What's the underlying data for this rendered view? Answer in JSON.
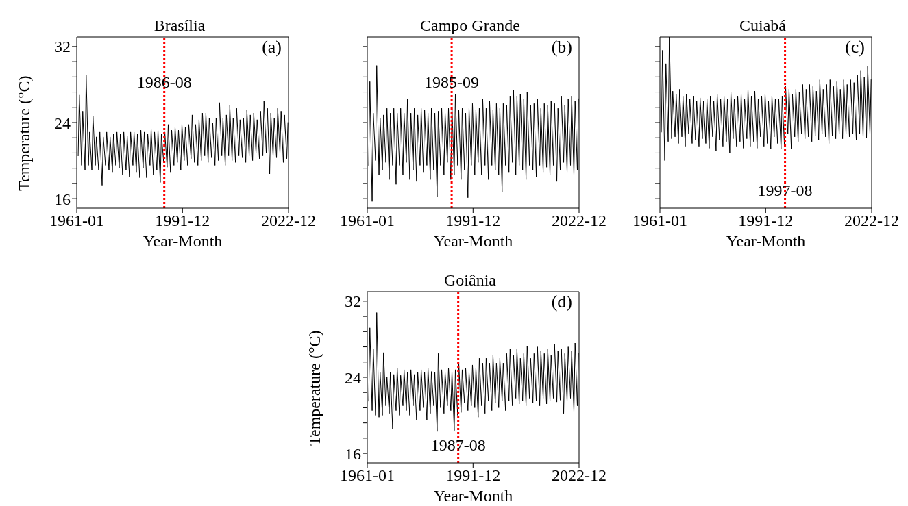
{
  "chart_data": [
    {
      "type": "line",
      "title": "Brasília",
      "xlabel": "Year-Month",
      "ylabel": "Temperature (°C)",
      "annotations": [
        "(a)"
      ],
      "x": [
        "1961-06",
        "1961-10",
        "1962-06",
        "1962-10",
        "1963-06",
        "1963-10",
        "1964-06",
        "1964-10",
        "1965-06",
        "1965-10",
        "1966-06",
        "1966-10",
        "1967-06",
        "1967-10",
        "1968-06",
        "1968-10",
        "1969-06",
        "1969-10",
        "1970-06",
        "1970-10",
        "1971-06",
        "1971-10",
        "1972-06",
        "1972-10",
        "1973-06",
        "1973-10",
        "1974-06",
        "1974-10",
        "1975-06",
        "1975-10",
        "1976-06",
        "1976-10",
        "1977-06",
        "1977-10",
        "1978-06",
        "1978-10",
        "1979-06",
        "1979-10",
        "1980-06",
        "1980-10",
        "1981-06",
        "1981-10",
        "1982-06",
        "1982-10",
        "1983-06",
        "1983-10",
        "1984-06",
        "1984-10",
        "1985-06",
        "1985-10",
        "1986-06",
        "1986-10",
        "1987-06",
        "1987-10",
        "1988-06",
        "1988-10",
        "1989-06",
        "1989-10",
        "1990-06",
        "1990-10",
        "1991-06",
        "1991-10",
        "1992-06",
        "1992-10",
        "1993-06",
        "1993-10",
        "1994-06",
        "1994-10",
        "1995-06",
        "1995-10",
        "1996-06",
        "1996-10",
        "1997-06",
        "1997-10",
        "1998-06",
        "1998-10",
        "1999-06",
        "1999-10",
        "2000-06",
        "2000-10",
        "2001-06",
        "2001-10",
        "2002-06",
        "2002-10",
        "2003-06",
        "2003-10",
        "2004-06",
        "2004-10",
        "2005-06",
        "2005-10",
        "2006-06",
        "2006-10",
        "2007-06",
        "2007-10",
        "2008-06",
        "2008-10",
        "2009-06",
        "2009-10",
        "2010-06",
        "2010-10",
        "2011-06",
        "2011-10",
        "2012-06",
        "2012-10",
        "2013-06",
        "2013-10",
        "2014-06",
        "2014-10",
        "2015-06",
        "2015-10",
        "2016-06",
        "2016-10",
        "2017-06",
        "2017-10",
        "2018-06",
        "2018-10",
        "2019-06",
        "2019-10",
        "2020-06",
        "2020-10",
        "2021-06",
        "2021-10",
        "2022-06",
        "2022-10"
      ],
      "series": [
        {
          "color": "#000000",
          "values": [
            20.5,
            26.9,
            19.5,
            25.2,
            19.0,
            29.0,
            19.5,
            23.0,
            19.0,
            24.7,
            19.5,
            22.5,
            19.0,
            23.0,
            17.4,
            22.5,
            19.5,
            23.0,
            19.0,
            22.5,
            18.8,
            22.8,
            19.5,
            23.0,
            19.2,
            22.8,
            18.5,
            23.0,
            19.0,
            22.6,
            18.3,
            23.0,
            19.5,
            23.0,
            18.8,
            22.8,
            18.2,
            23.2,
            19.2,
            23.0,
            18.2,
            22.8,
            19.5,
            23.3,
            18.5,
            23.0,
            19.0,
            23.2,
            17.7,
            22.8,
            19.8,
            23.0,
            19.3,
            23.8,
            18.8,
            23.2,
            19.5,
            23.5,
            19.8,
            23.2,
            19.0,
            23.8,
            20.0,
            23.5,
            19.5,
            23.8,
            20.2,
            24.8,
            19.8,
            23.8,
            19.5,
            24.3,
            20.0,
            25.0,
            20.5,
            25.0,
            19.8,
            24.5,
            20.3,
            24.0,
            19.5,
            24.5,
            20.0,
            26.1,
            20.5,
            24.5,
            19.5,
            24.8,
            20.5,
            25.8,
            20.0,
            24.5,
            19.8,
            25.5,
            20.5,
            24.3,
            20.3,
            24.5,
            19.8,
            25.3,
            20.5,
            24.8,
            20.0,
            25.0,
            20.8,
            24.3,
            20.2,
            25.2,
            20.5,
            26.3,
            20.8,
            25.5,
            18.6,
            25.0,
            20.5,
            24.5,
            20.3,
            25.5,
            20.8,
            25.2,
            19.8,
            24.8,
            20.2,
            24.0
          ]
        }
      ],
      "xlim": [
        "1961-01",
        "2022-12"
      ],
      "xticks": [
        "1961-01",
        "1991-12",
        "2022-12"
      ],
      "ylim": [
        15,
        33
      ],
      "yticks": [
        16,
        {
          "value": 17.6,
          "label": null
        },
        {
          "value": 19.2,
          "label": null
        },
        {
          "value": 20.8,
          "label": null
        },
        {
          "value": 22.4,
          "label": null
        },
        24,
        {
          "value": 25.6,
          "label": null
        },
        {
          "value": 27.2,
          "label": null
        },
        {
          "value": 28.8,
          "label": null
        },
        {
          "value": 30.4,
          "label": null
        },
        32
      ],
      "ref_lines": [
        {
          "axis": "x",
          "value": "1986-08",
          "label": "1986-08",
          "color": "#ff0000",
          "line_style": "dotted"
        }
      ],
      "legend": false,
      "grid": false,
      "marker": "none",
      "line_style": "solid"
    },
    {
      "type": "line",
      "title": "Campo Grande",
      "xlabel": "Year-Month",
      "annotations": [
        "(b)"
      ],
      "x": [
        "1961-06",
        "1961-10",
        "1962-06",
        "1962-10",
        "1963-06",
        "1963-10",
        "1964-06",
        "1964-10",
        "1965-06",
        "1965-10",
        "1966-06",
        "1966-10",
        "1967-06",
        "1967-10",
        "1968-06",
        "1968-10",
        "1969-06",
        "1969-10",
        "1970-06",
        "1970-10",
        "1971-06",
        "1971-10",
        "1972-06",
        "1972-10",
        "1973-06",
        "1973-10",
        "1974-06",
        "1974-10",
        "1975-06",
        "1975-10",
        "1976-06",
        "1976-10",
        "1977-06",
        "1977-10",
        "1978-06",
        "1978-10",
        "1979-06",
        "1979-10",
        "1980-06",
        "1980-10",
        "1981-06",
        "1981-10",
        "1982-06",
        "1982-10",
        "1983-06",
        "1983-10",
        "1984-06",
        "1984-10",
        "1985-06",
        "1985-10",
        "1986-06",
        "1986-10",
        "1987-06",
        "1987-10",
        "1988-06",
        "1988-10",
        "1989-06",
        "1989-10",
        "1990-06",
        "1990-10",
        "1991-06",
        "1991-10",
        "1992-06",
        "1992-10",
        "1993-06",
        "1993-10",
        "1994-06",
        "1994-10",
        "1995-06",
        "1995-10",
        "1996-06",
        "1996-10",
        "1997-06",
        "1997-10",
        "1998-06",
        "1998-10",
        "1999-06",
        "1999-10",
        "2000-06",
        "2000-10",
        "2001-06",
        "2001-10",
        "2002-06",
        "2002-10",
        "2003-06",
        "2003-10",
        "2004-06",
        "2004-10",
        "2005-06",
        "2005-10",
        "2006-06",
        "2006-10",
        "2007-06",
        "2007-10",
        "2008-06",
        "2008-10",
        "2009-06",
        "2009-10",
        "2010-06",
        "2010-10",
        "2011-06",
        "2011-10",
        "2012-06",
        "2012-10",
        "2013-06",
        "2013-10",
        "2014-06",
        "2014-10",
        "2015-06",
        "2015-10",
        "2016-06",
        "2016-10",
        "2017-06",
        "2017-10",
        "2018-06",
        "2018-10",
        "2019-06",
        "2019-10",
        "2020-06",
        "2020-10",
        "2021-06",
        "2021-10",
        "2022-06",
        "2022-10"
      ],
      "series": [
        {
          "color": "#000000",
          "values": [
            19.5,
            28.3,
            15.7,
            25.0,
            20.0,
            30.0,
            18.5,
            24.5,
            19.0,
            24.8,
            19.8,
            25.5,
            18.0,
            25.0,
            19.5,
            25.5,
            17.5,
            25.0,
            19.5,
            25.5,
            18.5,
            25.0,
            19.8,
            26.5,
            18.0,
            25.0,
            19.0,
            25.5,
            17.8,
            24.8,
            19.5,
            25.5,
            18.8,
            25.3,
            19.5,
            25.0,
            18.0,
            25.5,
            19.0,
            25.0,
            16.2,
            25.2,
            19.5,
            25.5,
            18.5,
            25.0,
            19.8,
            25.5,
            18.0,
            25.8,
            18.5,
            27.0,
            19.5,
            25.3,
            18.0,
            25.5,
            19.0,
            25.0,
            16.1,
            25.5,
            19.5,
            26.0,
            18.5,
            25.3,
            19.8,
            25.5,
            18.5,
            26.5,
            19.5,
            25.5,
            18.0,
            26.3,
            19.5,
            25.3,
            19.0,
            26.0,
            18.5,
            25.5,
            16.7,
            26.0,
            19.5,
            25.8,
            18.8,
            26.8,
            19.8,
            27.4,
            18.5,
            26.8,
            19.5,
            27.0,
            19.0,
            26.5,
            18.0,
            27.2,
            19.5,
            25.8,
            19.0,
            26.0,
            18.3,
            26.5,
            19.5,
            25.5,
            18.8,
            26.0,
            19.3,
            25.8,
            18.5,
            26.3,
            19.5,
            26.0,
            17.8,
            25.5,
            19.0,
            26.8,
            19.8,
            25.8,
            18.8,
            26.5,
            19.5,
            26.8,
            18.5,
            26.3,
            19.0,
            26.5
          ]
        }
      ],
      "xlim": [
        "1961-01",
        "2022-12"
      ],
      "xticks": [
        "1961-01",
        "1991-12",
        "2022-12"
      ],
      "ylim": [
        15,
        33
      ],
      "yticks": [
        16,
        {
          "value": 17.6,
          "label": null
        },
        {
          "value": 19.2,
          "label": null
        },
        {
          "value": 20.8,
          "label": null
        },
        {
          "value": 22.4,
          "label": null
        },
        24,
        {
          "value": 25.6,
          "label": null
        },
        {
          "value": 27.2,
          "label": null
        },
        {
          "value": 28.8,
          "label": null
        },
        {
          "value": 30.4,
          "label": null
        },
        32
      ],
      "tick_labels": "x",
      "ref_lines": [
        {
          "axis": "x",
          "value": "1985-09",
          "label": "1985-09",
          "color": "#ff0000",
          "line_style": "dotted"
        }
      ],
      "legend": false,
      "grid": false,
      "marker": "none",
      "line_style": "solid"
    },
    {
      "type": "line",
      "title": "Cuiabá",
      "xlabel": "Year-Month",
      "annotations": [
        "(c)"
      ],
      "x": [
        "1961-06",
        "1961-10",
        "1962-06",
        "1962-10",
        "1963-06",
        "1963-10",
        "1964-06",
        "1964-10",
        "1965-06",
        "1965-10",
        "1966-06",
        "1966-10",
        "1967-06",
        "1967-10",
        "1968-06",
        "1968-10",
        "1969-06",
        "1969-10",
        "1970-06",
        "1970-10",
        "1971-06",
        "1971-10",
        "1972-06",
        "1972-10",
        "1973-06",
        "1973-10",
        "1974-06",
        "1974-10",
        "1975-06",
        "1975-10",
        "1976-06",
        "1976-10",
        "1977-06",
        "1977-10",
        "1978-06",
        "1978-10",
        "1979-06",
        "1979-10",
        "1980-06",
        "1980-10",
        "1981-06",
        "1981-10",
        "1982-06",
        "1982-10",
        "1983-06",
        "1983-10",
        "1984-06",
        "1984-10",
        "1985-06",
        "1985-10",
        "1986-06",
        "1986-10",
        "1987-06",
        "1987-10",
        "1988-06",
        "1988-10",
        "1989-06",
        "1989-10",
        "1990-06",
        "1990-10",
        "1991-06",
        "1991-10",
        "1992-06",
        "1992-10",
        "1993-06",
        "1993-10",
        "1994-06",
        "1994-10",
        "1995-06",
        "1995-10",
        "1996-06",
        "1996-10",
        "1997-06",
        "1997-10",
        "1998-06",
        "1998-10",
        "1999-06",
        "1999-10",
        "2000-06",
        "2000-10",
        "2001-06",
        "2001-10",
        "2002-06",
        "2002-10",
        "2003-06",
        "2003-10",
        "2004-06",
        "2004-10",
        "2005-06",
        "2005-10",
        "2006-06",
        "2006-10",
        "2007-06",
        "2007-10",
        "2008-06",
        "2008-10",
        "2009-06",
        "2009-10",
        "2010-06",
        "2010-10",
        "2011-06",
        "2011-10",
        "2012-06",
        "2012-10",
        "2013-06",
        "2013-10",
        "2014-06",
        "2014-10",
        "2015-06",
        "2015-10",
        "2016-06",
        "2016-10",
        "2017-06",
        "2017-10",
        "2018-06",
        "2018-10",
        "2019-06",
        "2019-10",
        "2020-06",
        "2020-10",
        "2021-06",
        "2021-10",
        "2022-06",
        "2022-10"
      ],
      "series": [
        {
          "color": "#000000",
          "values": [
            23.0,
            31.6,
            20.0,
            30.2,
            22.0,
            33.0,
            22.3,
            27.3,
            22.5,
            27.0,
            21.8,
            27.5,
            22.5,
            26.8,
            21.5,
            27.0,
            22.8,
            26.5,
            21.8,
            26.8,
            22.2,
            26.3,
            21.5,
            26.6,
            22.3,
            26.3,
            21.8,
            26.5,
            21.3,
            26.8,
            22.5,
            26.3,
            21.0,
            27.0,
            22.2,
            26.5,
            21.5,
            26.8,
            22.0,
            26.5,
            20.8,
            27.2,
            22.3,
            26.5,
            21.5,
            26.8,
            22.0,
            27.0,
            21.3,
            26.5,
            22.3,
            27.5,
            21.5,
            26.8,
            22.0,
            27.3,
            21.3,
            26.5,
            22.5,
            26.8,
            21.5,
            27.0,
            21.8,
            26.3,
            21.2,
            26.8,
            22.5,
            26.5,
            21.8,
            26.5,
            21.2,
            26.8,
            21.5,
            27.8,
            22.8,
            27.5,
            21.2,
            27.0,
            22.5,
            27.5,
            22.0,
            27.2,
            22.8,
            28.0,
            22.3,
            27.5,
            22.5,
            28.0,
            22.0,
            27.8,
            22.6,
            27.3,
            22.2,
            28.5,
            22.8,
            27.5,
            22.5,
            28.0,
            21.8,
            28.5,
            22.6,
            27.8,
            22.3,
            28.3,
            22.8,
            27.5,
            22.3,
            28.5,
            22.8,
            28.0,
            22.5,
            28.5,
            22.8,
            28.2,
            22.2,
            29.0,
            22.8,
            29.5,
            22.5,
            28.8,
            22.4,
            29.9,
            22.8,
            28.5
          ]
        }
      ],
      "xlim": [
        "1961-01",
        "2022-12"
      ],
      "xticks": [
        "1961-01",
        "1991-12",
        "2022-12"
      ],
      "ylim": [
        15,
        33
      ],
      "yticks": [
        16,
        {
          "value": 17.6,
          "label": null
        },
        {
          "value": 19.2,
          "label": null
        },
        {
          "value": 20.8,
          "label": null
        },
        {
          "value": 22.4,
          "label": null
        },
        24,
        {
          "value": 25.6,
          "label": null
        },
        {
          "value": 27.2,
          "label": null
        },
        {
          "value": 28.8,
          "label": null
        },
        {
          "value": 30.4,
          "label": null
        },
        32
      ],
      "tick_labels": "x",
      "ref_lines": [
        {
          "axis": "x",
          "value": "1997-08",
          "label": "1997-08",
          "color": "#ff0000",
          "line_style": "dotted"
        }
      ],
      "legend": false,
      "grid": false,
      "marker": "none",
      "line_style": "solid"
    },
    {
      "type": "line",
      "title": "Goiânia",
      "xlabel": "Year-Month",
      "ylabel": "Temperature (°C)",
      "annotations": [
        "(d)"
      ],
      "x": [
        "1961-06",
        "1961-10",
        "1962-06",
        "1962-10",
        "1963-06",
        "1963-10",
        "1964-06",
        "1964-10",
        "1965-06",
        "1965-10",
        "1966-06",
        "1966-10",
        "1967-06",
        "1967-10",
        "1968-06",
        "1968-10",
        "1969-06",
        "1969-10",
        "1970-06",
        "1970-10",
        "1971-06",
        "1971-10",
        "1972-06",
        "1972-10",
        "1973-06",
        "1973-10",
        "1974-06",
        "1974-10",
        "1975-06",
        "1975-10",
        "1976-06",
        "1976-10",
        "1977-06",
        "1977-10",
        "1978-06",
        "1978-10",
        "1979-06",
        "1979-10",
        "1980-06",
        "1980-10",
        "1981-06",
        "1981-10",
        "1982-06",
        "1982-10",
        "1983-06",
        "1983-10",
        "1984-06",
        "1984-10",
        "1985-06",
        "1985-10",
        "1986-06",
        "1986-10",
        "1987-06",
        "1987-10",
        "1988-06",
        "1988-10",
        "1989-06",
        "1989-10",
        "1990-06",
        "1990-10",
        "1991-06",
        "1991-10",
        "1992-06",
        "1992-10",
        "1993-06",
        "1993-10",
        "1994-06",
        "1994-10",
        "1995-06",
        "1995-10",
        "1996-06",
        "1996-10",
        "1997-06",
        "1997-10",
        "1998-06",
        "1998-10",
        "1999-06",
        "1999-10",
        "2000-06",
        "2000-10",
        "2001-06",
        "2001-10",
        "2002-06",
        "2002-10",
        "2003-06",
        "2003-10",
        "2004-06",
        "2004-10",
        "2005-06",
        "2005-10",
        "2006-06",
        "2006-10",
        "2007-06",
        "2007-10",
        "2008-06",
        "2008-10",
        "2009-06",
        "2009-10",
        "2010-06",
        "2010-10",
        "2011-06",
        "2011-10",
        "2012-06",
        "2012-10",
        "2013-06",
        "2013-10",
        "2014-06",
        "2014-10",
        "2015-06",
        "2015-10",
        "2016-06",
        "2016-10",
        "2017-06",
        "2017-10",
        "2018-06",
        "2018-10",
        "2019-06",
        "2019-10",
        "2020-06",
        "2020-10",
        "2021-06",
        "2021-10",
        "2022-06",
        "2022-10"
      ],
      "series": [
        {
          "color": "#000000",
          "values": [
            21.5,
            29.2,
            20.5,
            27.0,
            20.0,
            30.8,
            19.8,
            24.5,
            20.0,
            26.6,
            21.0,
            24.0,
            20.2,
            24.5,
            18.6,
            24.3,
            20.5,
            25.0,
            20.0,
            24.2,
            21.0,
            24.8,
            20.5,
            24.5,
            20.0,
            24.8,
            21.0,
            24.3,
            19.5,
            24.5,
            20.5,
            24.8,
            20.8,
            24.5,
            19.5,
            25.0,
            20.2,
            24.6,
            21.0,
            24.5,
            18.3,
            26.5,
            20.8,
            24.8,
            20.2,
            24.5,
            21.0,
            25.0,
            20.5,
            24.6,
            18.4,
            24.8,
            20.0,
            25.5,
            20.3,
            24.8,
            21.3,
            25.0,
            20.5,
            24.5,
            21.0,
            25.3,
            20.8,
            25.0,
            19.8,
            26.0,
            21.0,
            25.5,
            20.2,
            26.0,
            21.5,
            25.5,
            20.5,
            26.3,
            21.3,
            25.5,
            20.8,
            26.0,
            21.5,
            25.5,
            20.5,
            26.5,
            21.5,
            27.0,
            21.0,
            26.3,
            21.8,
            27.0,
            21.2,
            26.0,
            21.5,
            26.5,
            21.0,
            27.3,
            21.8,
            26.0,
            21.3,
            26.5,
            21.5,
            27.2,
            21.0,
            26.8,
            21.8,
            26.5,
            21.2,
            27.0,
            21.5,
            26.3,
            21.8,
            27.5,
            21.4,
            26.8,
            21.6,
            27.0,
            20.2,
            26.5,
            21.5,
            27.2,
            21.8,
            26.8,
            20.4,
            27.6,
            21.0,
            26.5
          ]
        }
      ],
      "xlim": [
        "1961-01",
        "2022-12"
      ],
      "xticks": [
        "1961-01",
        "1991-12",
        "2022-12"
      ],
      "ylim": [
        15,
        33
      ],
      "yticks": [
        16,
        {
          "value": 17.6,
          "label": null
        },
        {
          "value": 19.2,
          "label": null
        },
        {
          "value": 20.8,
          "label": null
        },
        {
          "value": 22.4,
          "label": null
        },
        24,
        {
          "value": 25.6,
          "label": null
        },
        {
          "value": 27.2,
          "label": null
        },
        {
          "value": 28.8,
          "label": null
        },
        {
          "value": 30.4,
          "label": null
        },
        32
      ],
      "ref_lines": [
        {
          "axis": "x",
          "value": "1987-08",
          "label": "1987-08",
          "color": "#ff0000",
          "line_style": "dotted"
        }
      ],
      "legend": false,
      "grid": false,
      "marker": "none",
      "line_style": "solid"
    }
  ]
}
